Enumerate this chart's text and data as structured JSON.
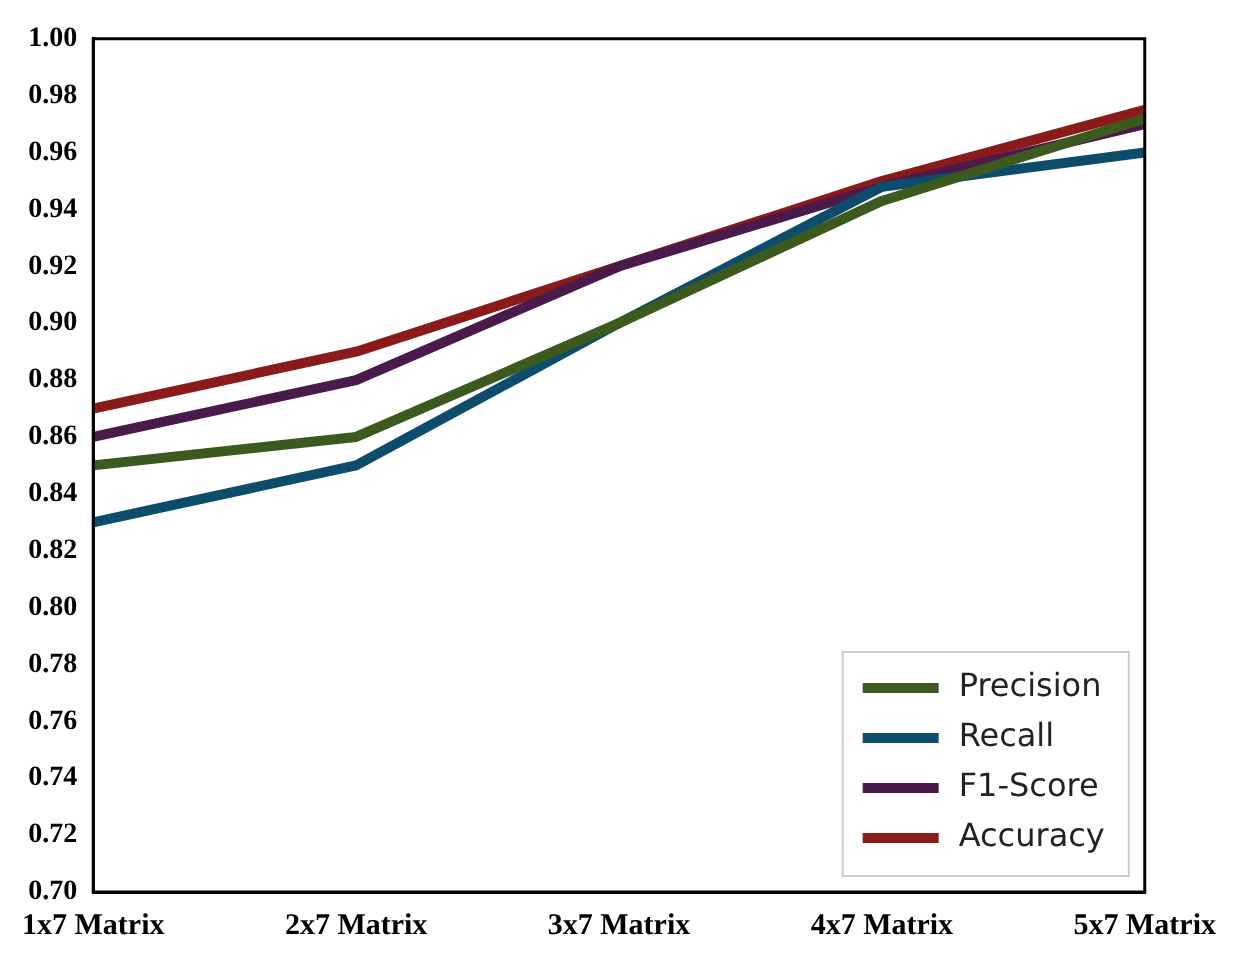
{
  "chart_data": {
    "type": "line",
    "categories": [
      "1x7 Matrix",
      "2x7 Matrix",
      "3x7 Matrix",
      "4x7 Matrix",
      "5x7 Matrix"
    ],
    "series": [
      {
        "name": "Precision",
        "color": "#3d5a1e",
        "values": [
          0.85,
          0.86,
          0.9,
          0.943,
          0.972
        ]
      },
      {
        "name": "Recall",
        "color": "#0d4d6b",
        "values": [
          0.83,
          0.85,
          0.9,
          0.948,
          0.96
        ]
      },
      {
        "name": "F1-Score",
        "color": "#4a1a4a",
        "values": [
          0.86,
          0.88,
          0.92,
          0.948,
          0.97
        ]
      },
      {
        "name": "Accuracy",
        "color": "#8b1a1a",
        "values": [
          0.87,
          0.89,
          0.92,
          0.95,
          0.975
        ]
      }
    ],
    "ylim": [
      0.7,
      1.0
    ],
    "yticks": [
      {
        "value": 0.7,
        "label": "0.70"
      },
      {
        "value": 0.72,
        "label": "0.72"
      },
      {
        "value": 0.74,
        "label": "0.74"
      },
      {
        "value": 0.76,
        "label": "0.76"
      },
      {
        "value": 0.78,
        "label": "0.78"
      },
      {
        "value": 0.8,
        "label": "0.80"
      },
      {
        "value": 0.82,
        "label": "0.82"
      },
      {
        "value": 0.84,
        "label": "0.84"
      },
      {
        "value": 0.86,
        "label": "0.86"
      },
      {
        "value": 0.88,
        "label": "0.88"
      },
      {
        "value": 0.9,
        "label": "0.90"
      },
      {
        "value": 0.92,
        "label": "0.92"
      },
      {
        "value": 0.94,
        "label": "0.94"
      },
      {
        "value": 0.96,
        "label": "0.96"
      },
      {
        "value": 0.98,
        "label": "0.98"
      },
      {
        "value": 1.0,
        "label": "1.00"
      }
    ],
    "grid": false,
    "legend": "bottom right",
    "marker": "none",
    "line_style": "solid"
  }
}
